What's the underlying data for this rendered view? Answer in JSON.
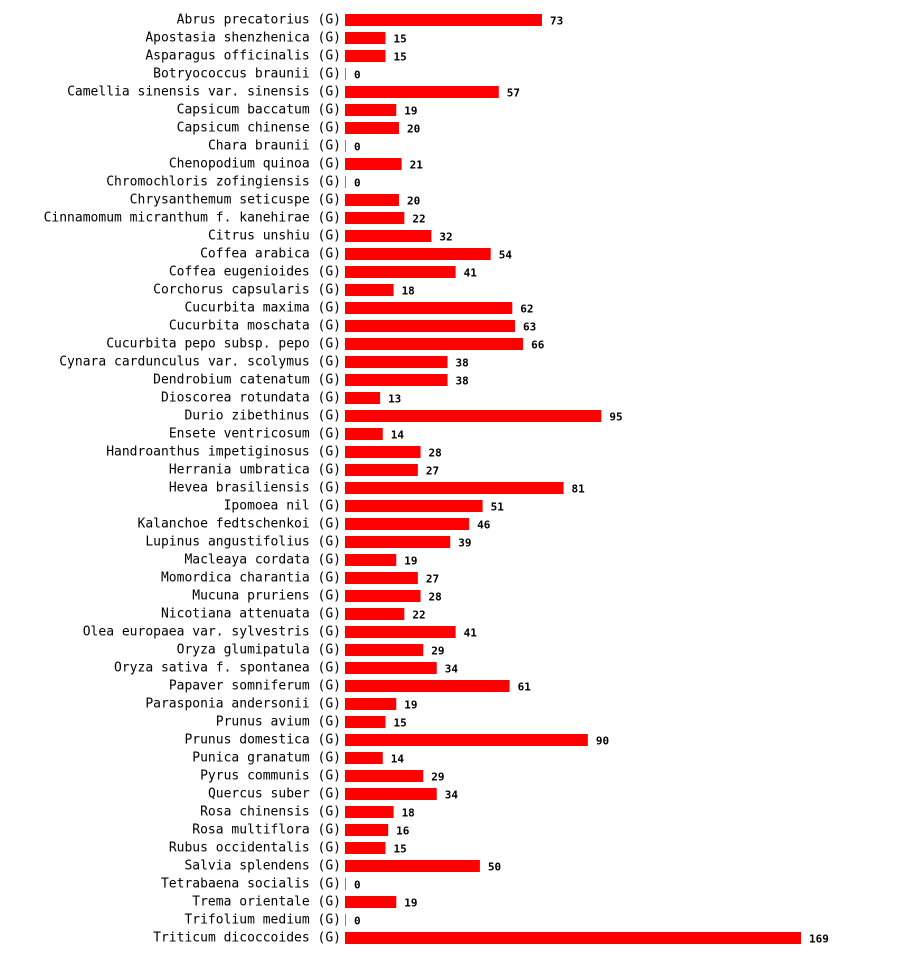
{
  "chart_data": {
    "type": "bar",
    "orientation": "horizontal",
    "title": "",
    "xlabel": "",
    "ylabel": "",
    "suffix": "(G)",
    "bar_color": "#ff0000",
    "xlim": [
      0,
      169
    ],
    "grid": false,
    "categories": [
      "Abrus precatorius",
      "Apostasia shenzhenica",
      "Asparagus officinalis",
      "Botryococcus braunii",
      "Camellia sinensis var. sinensis",
      "Capsicum baccatum",
      "Capsicum chinense",
      "Chara braunii",
      "Chenopodium quinoa",
      "Chromochloris zofingiensis",
      "Chrysanthemum seticuspe",
      "Cinnamomum micranthum f. kanehirae",
      "Citrus unshiu",
      "Coffea arabica",
      "Coffea eugenioides",
      "Corchorus capsularis",
      "Cucurbita maxima",
      "Cucurbita moschata",
      "Cucurbita pepo subsp. pepo",
      "Cynara cardunculus var. scolymus",
      "Dendrobium catenatum",
      "Dioscorea rotundata",
      "Durio zibethinus",
      "Ensete ventricosum",
      "Handroanthus impetiginosus",
      "Herrania umbratica",
      "Hevea brasiliensis",
      "Ipomoea nil",
      "Kalanchoe fedtschenkoi",
      "Lupinus angustifolius",
      "Macleaya cordata",
      "Momordica charantia",
      "Mucuna pruriens",
      "Nicotiana attenuata",
      "Olea europaea var. sylvestris",
      "Oryza glumipatula",
      "Oryza sativa f. spontanea",
      "Papaver somniferum",
      "Parasponia andersonii",
      "Prunus avium",
      "Prunus domestica",
      "Punica granatum",
      "Pyrus communis",
      "Quercus suber",
      "Rosa chinensis",
      "Rosa multiflora",
      "Rubus occidentalis",
      "Salvia splendens",
      "Tetrabaena socialis",
      "Trema orientale",
      "Trifolium medium",
      "Triticum dicoccoides"
    ],
    "values": [
      73,
      15,
      15,
      0,
      57,
      19,
      20,
      0,
      21,
      0,
      20,
      22,
      32,
      54,
      41,
      18,
      62,
      63,
      66,
      38,
      38,
      13,
      95,
      14,
      28,
      27,
      81,
      51,
      46,
      39,
      19,
      27,
      28,
      22,
      41,
      29,
      34,
      61,
      19,
      15,
      90,
      14,
      29,
      34,
      18,
      16,
      15,
      50,
      0,
      19,
      0,
      169
    ]
  }
}
